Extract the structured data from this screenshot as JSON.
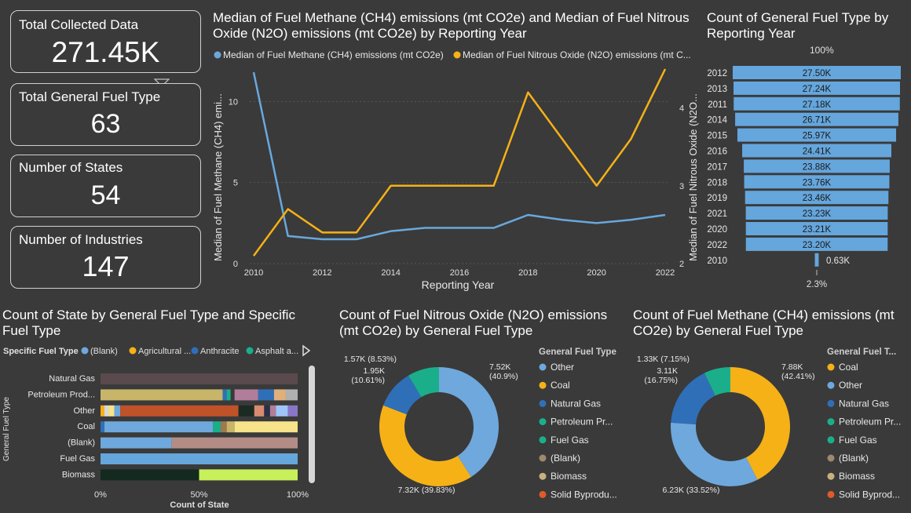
{
  "kpis": [
    {
      "label": "Total Collected Data",
      "value": "271.45K"
    },
    {
      "label": "Total General Fuel Type",
      "value": "63"
    },
    {
      "label": "Number of States",
      "value": "54"
    },
    {
      "label": "Number of Industries",
      "value": "147"
    }
  ],
  "colors": {
    "blue": "#69a8dc",
    "orange": "#f6b117",
    "grid": "#555555",
    "bar": "#65a6dc"
  },
  "line_chart": {
    "title": "Median of Fuel Methane (CH4) emissions (mt CO2e) and Median of Fuel Nitrous Oxide (N2O) emissions (mt CO2e) by Reporting Year",
    "legend": [
      "Median of Fuel Methane (CH4) emissions (mt CO2e)",
      "Median of Fuel Nitrous Oxide (N2O) emissions (mt C..."
    ],
    "xlabel": "Reporting Year",
    "ylabel_left": "Median of Fuel Methane (CH4) emi...",
    "ylabel_right": "Median of Fuel Nitrous Oxide (N2O...",
    "x_ticks": [
      "2010",
      "2012",
      "2014",
      "2016",
      "2018",
      "2020",
      "2022"
    ],
    "y_left_ticks": [
      "0",
      "5",
      "10"
    ],
    "y_right_ticks": [
      "2",
      "3",
      "4"
    ]
  },
  "funnel": {
    "title": "Count of General Fuel Type by Reporting Year",
    "top_label": "100%",
    "bottom_label": "2.3%",
    "years": [
      "2012",
      "2013",
      "2011",
      "2014",
      "2015",
      "2016",
      "2017",
      "2018",
      "2019",
      "2021",
      "2020",
      "2022",
      "2010"
    ],
    "labels": [
      "27.50K",
      "27.24K",
      "27.18K",
      "26.71K",
      "25.97K",
      "24.41K",
      "23.88K",
      "23.76K",
      "23.46K",
      "23.23K",
      "23.21K",
      "23.20K",
      "0.63K"
    ]
  },
  "stacked": {
    "title": "Count of State by General Fuel Type and Specific Fuel Type",
    "legend_title": "Specific Fuel Type",
    "legend": [
      {
        "label": "(Blank)",
        "color": "#6fa8dc"
      },
      {
        "label": "Agricultural ...",
        "color": "#f6b117"
      },
      {
        "label": "Anthracite",
        "color": "#2f6fb8"
      },
      {
        "label": "Asphalt a...",
        "color": "#1aaf8a"
      }
    ],
    "y_axis_label": "General Fuel Type",
    "x_axis_label": "Count of State",
    "x_ticks": [
      "0%",
      "50%",
      "100%"
    ],
    "categories": [
      "Natural Gas",
      "Petroleum Prod...",
      "Other",
      "Coal",
      "(Blank)",
      "Fuel Gas",
      "Biomass"
    ]
  },
  "chart_data": [
    {
      "type": "line",
      "title": "Median of Fuel Methane (CH4) emissions (mt CO2e) and Median of Fuel Nitrous Oxide (N2O) emissions (mt CO2e) by Reporting Year",
      "xlabel": "Reporting Year",
      "x": [
        2010,
        2011,
        2012,
        2013,
        2014,
        2015,
        2016,
        2017,
        2018,
        2019,
        2020,
        2021,
        2022
      ],
      "series": [
        {
          "name": "Median of Fuel Methane (CH4) emissions (mt CO2e)",
          "axis": "left",
          "values": [
            11.8,
            1.7,
            1.5,
            1.5,
            2.0,
            2.2,
            2.2,
            2.2,
            3.0,
            2.7,
            2.5,
            2.7,
            3.0
          ]
        },
        {
          "name": "Median of Fuel Nitrous Oxide (N2O) emissions (mt CO2e)",
          "axis": "right",
          "values": [
            2.1,
            2.7,
            2.4,
            2.4,
            3.0,
            3.0,
            3.0,
            3.0,
            4.2,
            3.6,
            3.0,
            3.6,
            4.5
          ]
        }
      ],
      "ylim_left": [
        0,
        12
      ],
      "ylim_right": [
        2,
        4.5
      ]
    },
    {
      "type": "bar",
      "title": "Count of General Fuel Type by Reporting Year",
      "categories": [
        "2012",
        "2013",
        "2011",
        "2014",
        "2015",
        "2016",
        "2017",
        "2018",
        "2019",
        "2021",
        "2020",
        "2022",
        "2010"
      ],
      "values": [
        27500,
        27240,
        27180,
        26710,
        25970,
        24410,
        23880,
        23760,
        23460,
        23230,
        23210,
        23200,
        630
      ]
    },
    {
      "type": "bar",
      "title": "Count of State by General Fuel Type and Specific Fuel Type",
      "categories": [
        "Natural Gas",
        "Petroleum Prod...",
        "Other",
        "Coal",
        "(Blank)",
        "Fuel Gas",
        "Biomass"
      ],
      "segments": [
        [
          {
            "color": "#5a4a4d",
            "value": 100
          }
        ],
        [
          {
            "color": "#c8b56a",
            "value": 62
          },
          {
            "color": "#2f6fb8",
            "value": 2
          },
          {
            "color": "#1aaf8a",
            "value": 2
          },
          {
            "color": "#3a3a3a",
            "value": 2
          },
          {
            "color": "#b07e9a",
            "value": 12
          },
          {
            "color": "#2f6fb8",
            "value": 8
          },
          {
            "color": "#e0b07a",
            "value": 6
          },
          {
            "color": "#b0b0b0",
            "value": 6
          }
        ],
        [
          {
            "color": "#f6b117",
            "value": 2
          },
          {
            "color": "#d9d9d9",
            "value": 2
          },
          {
            "color": "#f6e38a",
            "value": 3
          },
          {
            "color": "#6fa8dc",
            "value": 3
          },
          {
            "color": "#c05229",
            "value": 60
          },
          {
            "color": "#1c2a24",
            "value": 8
          },
          {
            "color": "#d88b6f",
            "value": 5
          },
          {
            "color": "#2a2f4a",
            "value": 3
          },
          {
            "color": "#b07e9a",
            "value": 3
          },
          {
            "color": "#9fc5f8",
            "value": 6
          },
          {
            "color": "#8a76c8",
            "value": 5
          }
        ],
        [
          {
            "color": "#2f6fb8",
            "value": 2
          },
          {
            "color": "#6fa8dc",
            "value": 55
          },
          {
            "color": "#1aaf8a",
            "value": 4
          },
          {
            "color": "#a07850",
            "value": 3
          },
          {
            "color": "#c8b56a",
            "value": 4
          },
          {
            "color": "#f6e38a",
            "value": 32
          }
        ],
        [
          {
            "color": "#6fa8dc",
            "value": 36
          },
          {
            "color": "#b38d85",
            "value": 64
          }
        ],
        [
          {
            "color": "#65a6dc",
            "value": 100
          }
        ],
        [
          {
            "color": "#142a20",
            "value": 50
          },
          {
            "color": "#c8f05a",
            "value": 50
          }
        ]
      ],
      "xlabel": "Count of State",
      "ylabel": "General Fuel Type"
    },
    {
      "type": "pie",
      "title": "Count of Fuel Nitrous Oxide (N2O) emissions (mt CO2e) by General Fuel Type",
      "labels": [
        "Other",
        "Coal",
        "Natural Gas",
        "Petroleum Pr..."
      ],
      "values": [
        7520,
        7320,
        1950,
        1570
      ],
      "percents": [
        "40.9%",
        "39.83%",
        "10.61%",
        "8.53%"
      ],
      "value_labels": [
        "7.52K",
        "7.32K (39.83%)",
        "1.95K",
        "1.57K (8.53%)"
      ],
      "colors": [
        "#6fa8dc",
        "#f6b117",
        "#2f6fb8",
        "#1aaf8a"
      ]
    },
    {
      "type": "pie",
      "title": "Count of Fuel Methane (CH4) emissions (mt CO2e) by General Fuel Type",
      "labels": [
        "Coal",
        "Other",
        "Natural Gas",
        "Petroleum Pr..."
      ],
      "values": [
        7880,
        6230,
        3110,
        1330
      ],
      "percents": [
        "42.41%",
        "33.52%",
        "16.75%",
        "7.15%"
      ],
      "value_labels": [
        "7.88K",
        "6.23K (33.52%)",
        "3.11K",
        "1.33K (7.15%)"
      ],
      "colors": [
        "#f6b117",
        "#6fa8dc",
        "#2f6fb8",
        "#1aaf8a"
      ]
    }
  ],
  "donut1": {
    "title": "Count of Fuel Nitrous Oxide (N2O) emissions (mt CO2e) by General Fuel Type",
    "legend_title": "General Fuel Type",
    "legend": [
      {
        "label": "Other",
        "color": "#6fa8dc"
      },
      {
        "label": "Coal",
        "color": "#f6b117"
      },
      {
        "label": "Natural Gas",
        "color": "#2f6fb8"
      },
      {
        "label": "Petroleum Pr...",
        "color": "#1aaf8a"
      },
      {
        "label": "Fuel Gas",
        "color": "#1aaf8a"
      },
      {
        "label": "(Blank)",
        "color": "#a08870"
      },
      {
        "label": "Biomass",
        "color": "#c8b080"
      },
      {
        "label": "Solid Byprodu...",
        "color": "#e05a2a"
      }
    ]
  },
  "donut2": {
    "title": "Count of Fuel Methane (CH4) emissions (mt CO2e) by General Fuel Type",
    "legend_title": "General Fuel T...",
    "legend": [
      {
        "label": "Coal",
        "color": "#f6b117"
      },
      {
        "label": "Other",
        "color": "#6fa8dc"
      },
      {
        "label": "Natural Gas",
        "color": "#2f6fb8"
      },
      {
        "label": "Petroleum Pr...",
        "color": "#1aaf8a"
      },
      {
        "label": "Fuel Gas",
        "color": "#1aaf8a"
      },
      {
        "label": "(Blank)",
        "color": "#a08870"
      },
      {
        "label": "Biomass",
        "color": "#c8b080"
      },
      {
        "label": "Solid Byprod...",
        "color": "#e05a2a"
      }
    ]
  }
}
